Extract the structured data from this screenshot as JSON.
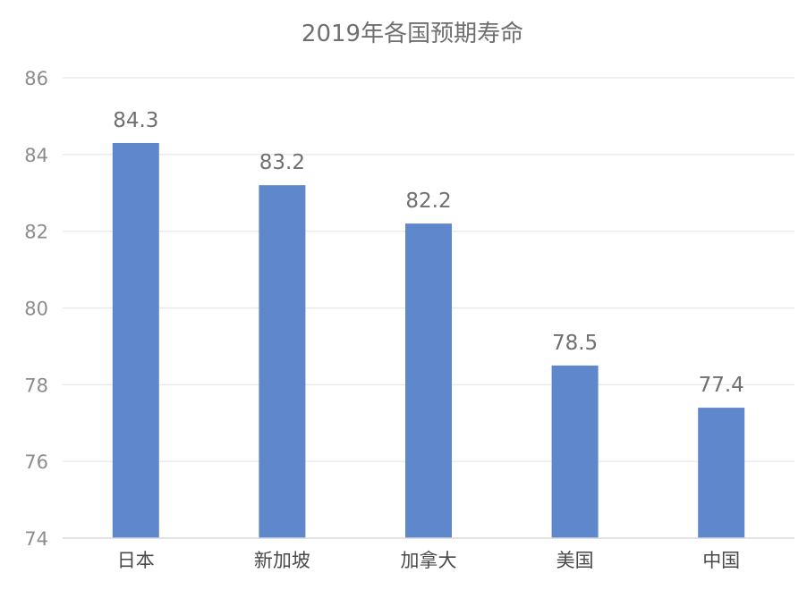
{
  "chart_data": {
    "type": "bar",
    "title": "2019年各国预期寿命",
    "xlabel": "",
    "ylabel": "",
    "categories": [
      "日本",
      "新加坡",
      "加拿大",
      "美国",
      "中国"
    ],
    "values": [
      84.3,
      83.2,
      82.2,
      78.5,
      77.4
    ],
    "data_labels": [
      "84.3",
      "83.2",
      "82.2",
      "78.5",
      "77.4"
    ],
    "ylim": [
      74,
      86
    ],
    "yticks": [
      74,
      76,
      78,
      80,
      82,
      84,
      86
    ],
    "grid": true,
    "legend": "none",
    "bar_color": "#5f87cc"
  }
}
